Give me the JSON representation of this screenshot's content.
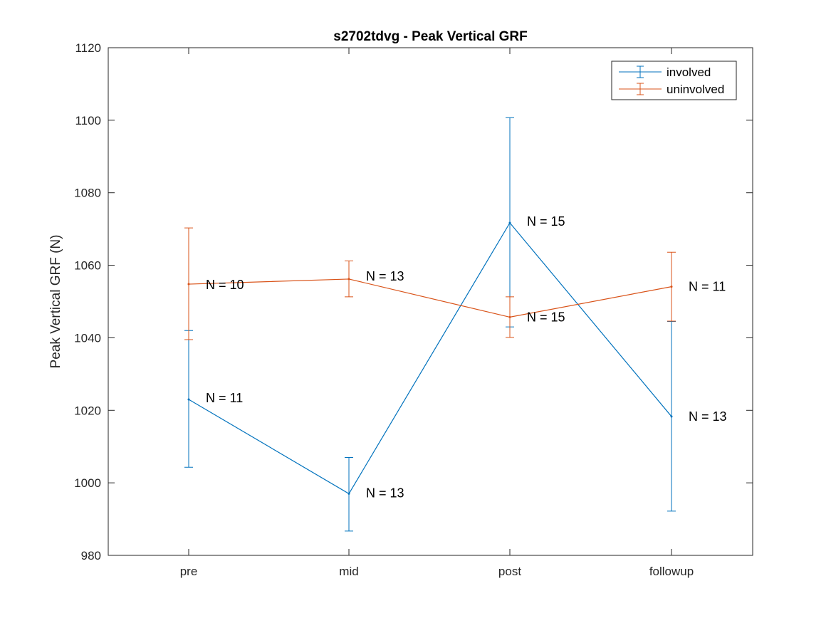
{
  "chart_data": {
    "type": "line",
    "title": "s2702tdvg - Peak Vertical GRF",
    "xlabel": "",
    "ylabel": "Peak Vertical GRF (N)",
    "categories": [
      "pre",
      "mid",
      "post",
      "followup"
    ],
    "ylim": [
      980,
      1120
    ],
    "yticks": [
      980,
      1000,
      1020,
      1040,
      1060,
      1080,
      1100,
      1120
    ],
    "grid": false,
    "legend_position": "top-right",
    "series": [
      {
        "name": "involved",
        "color": "#0072BD",
        "values": [
          1023,
          997,
          1071.7,
          1018.3
        ],
        "err_low": [
          1004.3,
          986.7,
          1043,
          992.2
        ],
        "err_high": [
          1042,
          1007,
          1100.7,
          1044.5
        ],
        "annotations": [
          "N = 11",
          "N = 13",
          "N = 15",
          "N = 13"
        ]
      },
      {
        "name": "uninvolved",
        "color": "#D95319",
        "values": [
          1054.8,
          1056.2,
          1045.7,
          1054.1
        ],
        "err_low": [
          1039.5,
          1051.3,
          1040.1,
          1044.6
        ],
        "err_high": [
          1070.3,
          1061.2,
          1051.3,
          1063.6
        ],
        "annotations": [
          "N = 10",
          "N = 13",
          "N = 15",
          "N = 11"
        ]
      }
    ]
  }
}
